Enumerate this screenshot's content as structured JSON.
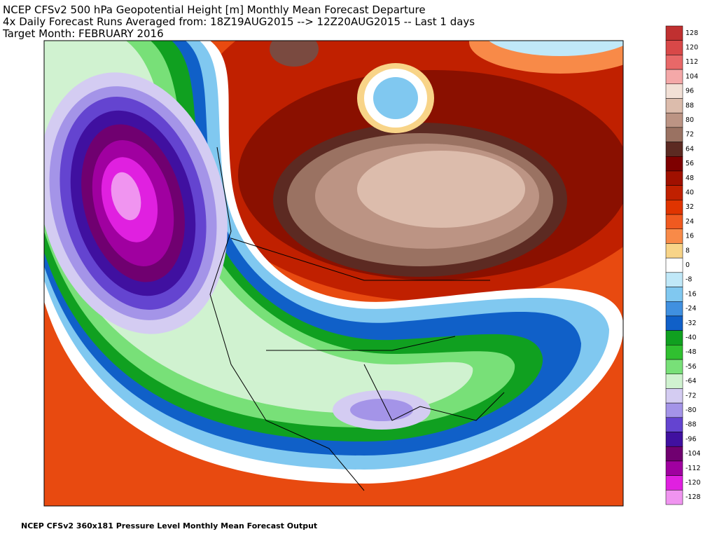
{
  "header": {
    "lines": [
      "NCEP CFSv2 500 hPa Geopotential Height [m] Monthly Mean Forecast Departure",
      "4x Daily Forecast Runs Averaged from: 18Z19AUG2015 --> 12Z20AUG2015 -- Last 1 days",
      "Target Month: FEBRUARY 2016"
    ]
  },
  "colorbar": {
    "levels": [
      {
        "value": 128,
        "color": "#c03030"
      },
      {
        "value": 120,
        "color": "#d84848"
      },
      {
        "value": 112,
        "color": "#e86868"
      },
      {
        "value": 104,
        "color": "#f4a8a8"
      },
      {
        "value": 96,
        "color": "#f2e0d6"
      },
      {
        "value": 88,
        "color": "#dcbcac"
      },
      {
        "value": 80,
        "color": "#bc9484"
      },
      {
        "value": 72,
        "color": "#9a7262"
      },
      {
        "value": 64,
        "color": "#5c2a22"
      },
      {
        "value": 56,
        "color": "#7e0000"
      },
      {
        "value": 48,
        "color": "#a01000"
      },
      {
        "value": 40,
        "color": "#c02000"
      },
      {
        "value": 32,
        "color": "#e03400"
      },
      {
        "value": 24,
        "color": "#f05a20"
      },
      {
        "value": 16,
        "color": "#f88a48"
      },
      {
        "value": 8,
        "color": "#f8d488"
      },
      {
        "value": 0,
        "color": "#ffffff"
      },
      {
        "value": -8,
        "color": "#c0e8f8"
      },
      {
        "value": -16,
        "color": "#80c8f0"
      },
      {
        "value": -24,
        "color": "#4090e0"
      },
      {
        "value": -32,
        "color": "#1060c8"
      },
      {
        "value": -40,
        "color": "#10a020"
      },
      {
        "value": -48,
        "color": "#30c030"
      },
      {
        "value": -56,
        "color": "#78e078"
      },
      {
        "value": -64,
        "color": "#d0f2d0"
      },
      {
        "value": -72,
        "color": "#d4ccf2"
      },
      {
        "value": -80,
        "color": "#a494e8"
      },
      {
        "value": -88,
        "color": "#6444d0"
      },
      {
        "value": -96,
        "color": "#4010a0"
      },
      {
        "value": -104,
        "color": "#700070"
      },
      {
        "value": -112,
        "color": "#a000a0"
      },
      {
        "value": -120,
        "color": "#e020e0"
      },
      {
        "value": -128,
        "color": "#f094f0"
      }
    ]
  },
  "footer": "NCEP CFSv2 360x181 Pressure Level Monthly Mean Forecast Output"
}
